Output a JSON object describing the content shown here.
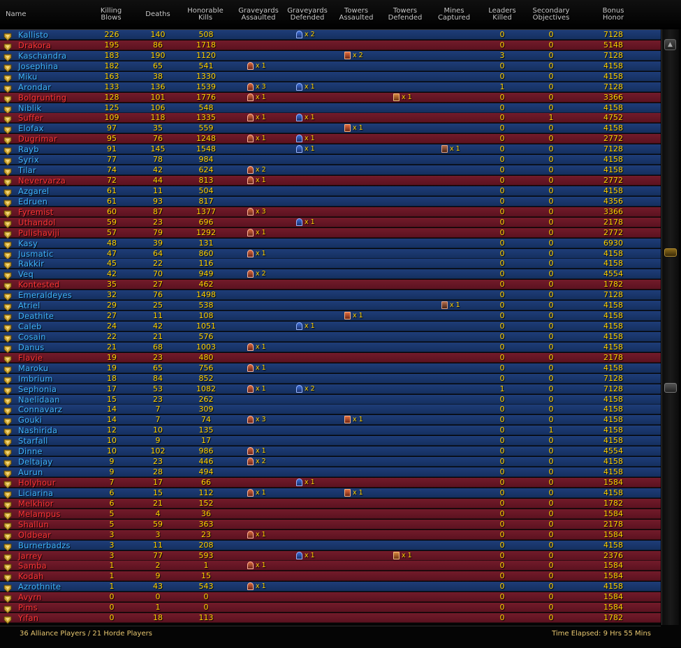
{
  "columns": [
    {
      "key": "name",
      "label": "Name"
    },
    {
      "key": "killing_blows",
      "label": "Killing\nBlows"
    },
    {
      "key": "deaths",
      "label": "Deaths"
    },
    {
      "key": "honorable_kills",
      "label": "Honorable\nKills"
    },
    {
      "key": "graveyards_assaulted",
      "label": "Graveyards\nAssaulted"
    },
    {
      "key": "graveyards_defended",
      "label": "Graveyards\nDefended"
    },
    {
      "key": "towers_assaulted",
      "label": "Towers\nAssaulted"
    },
    {
      "key": "towers_defended",
      "label": "Towers\nDefended"
    },
    {
      "key": "mines_captured",
      "label": "Mines\nCaptured"
    },
    {
      "key": "leaders_killed",
      "label": "Leaders\nKilled"
    },
    {
      "key": "secondary_objectives",
      "label": "Secondary\nObjectives"
    },
    {
      "key": "bonus_honor",
      "label": "Bonus\nHonor"
    }
  ],
  "colors": {
    "alliance": "#1e3d78",
    "horde": "#731b2a",
    "alliance_name": "#3fb5ff",
    "horde_name": "#ff3535",
    "value": "#ffd200"
  },
  "players": [
    {
      "name": "Kallisto",
      "faction": "alliance",
      "rank_icon": "rank-insignia-icon",
      "kb": "226",
      "deaths": "140",
      "hk": "508",
      "gy_a": "",
      "gy_d": "x 2",
      "tw_a": "",
      "tw_d": "",
      "mines": "",
      "leaders": "0",
      "secondary": "0",
      "bonus": "7128"
    },
    {
      "name": "Drakora",
      "faction": "horde",
      "rank_icon": "rank-insignia-icon",
      "kb": "195",
      "deaths": "86",
      "hk": "1718",
      "gy_a": "",
      "gy_d": "",
      "tw_a": "",
      "tw_d": "",
      "mines": "",
      "leaders": "0",
      "secondary": "0",
      "bonus": "5148"
    },
    {
      "name": "Kaschandra",
      "faction": "alliance",
      "rank_icon": "rank-insignia-icon",
      "kb": "183",
      "deaths": "190",
      "hk": "1120",
      "gy_a": "",
      "gy_d": "",
      "tw_a": "x 2",
      "tw_d": "",
      "mines": "",
      "leaders": "3",
      "secondary": "0",
      "bonus": "7128"
    },
    {
      "name": "Josephina",
      "faction": "alliance",
      "rank_icon": "rank-insignia-icon",
      "kb": "182",
      "deaths": "65",
      "hk": "541",
      "gy_a": "x 1",
      "gy_d": "",
      "tw_a": "",
      "tw_d": "",
      "mines": "",
      "leaders": "0",
      "secondary": "0",
      "bonus": "4158"
    },
    {
      "name": "Miku",
      "faction": "alliance",
      "rank_icon": "rank-insignia-icon",
      "kb": "163",
      "deaths": "38",
      "hk": "1330",
      "gy_a": "",
      "gy_d": "",
      "tw_a": "",
      "tw_d": "",
      "mines": "",
      "leaders": "0",
      "secondary": "0",
      "bonus": "4158"
    },
    {
      "name": "Arondar",
      "faction": "alliance",
      "rank_icon": "rank-insignia-icon",
      "kb": "133",
      "deaths": "136",
      "hk": "1539",
      "gy_a": "x 3",
      "gy_d": "x 1",
      "tw_a": "",
      "tw_d": "",
      "mines": "",
      "leaders": "1",
      "secondary": "0",
      "bonus": "7128"
    },
    {
      "name": "Bolgrunting",
      "faction": "horde",
      "rank_icon": "rank-insignia-icon",
      "kb": "128",
      "deaths": "101",
      "hk": "1776",
      "gy_a": "x 1",
      "gy_d": "",
      "tw_a": "",
      "tw_d": "x 1",
      "mines": "",
      "leaders": "0",
      "secondary": "0",
      "bonus": "3366"
    },
    {
      "name": "Niblik",
      "faction": "alliance",
      "rank_icon": "rank-insignia-icon",
      "kb": "125",
      "deaths": "106",
      "hk": "548",
      "gy_a": "",
      "gy_d": "",
      "tw_a": "",
      "tw_d": "",
      "mines": "",
      "leaders": "0",
      "secondary": "0",
      "bonus": "4158"
    },
    {
      "name": "Suffer",
      "faction": "horde",
      "rank_icon": "rank-insignia-icon",
      "kb": "109",
      "deaths": "118",
      "hk": "1335",
      "gy_a": "x 1",
      "gy_d": "x 1",
      "tw_a": "",
      "tw_d": "",
      "mines": "",
      "leaders": "0",
      "secondary": "1",
      "bonus": "4752"
    },
    {
      "name": "Elofax",
      "faction": "alliance",
      "rank_icon": "rank-insignia-icon",
      "kb": "97",
      "deaths": "35",
      "hk": "559",
      "gy_a": "",
      "gy_d": "",
      "tw_a": "x 1",
      "tw_d": "",
      "mines": "",
      "leaders": "0",
      "secondary": "0",
      "bonus": "4158"
    },
    {
      "name": "Dugrimar",
      "faction": "horde",
      "rank_icon": "rank-insignia-icon",
      "kb": "95",
      "deaths": "76",
      "hk": "1248",
      "gy_a": "x 1",
      "gy_d": "x 1",
      "tw_a": "",
      "tw_d": "",
      "mines": "",
      "leaders": "0",
      "secondary": "0",
      "bonus": "2772"
    },
    {
      "name": "Rayb",
      "faction": "alliance",
      "rank_icon": "rank-insignia-icon",
      "kb": "91",
      "deaths": "145",
      "hk": "1548",
      "gy_a": "",
      "gy_d": "x 1",
      "tw_a": "",
      "tw_d": "",
      "mines": "x 1",
      "leaders": "0",
      "secondary": "0",
      "bonus": "7128"
    },
    {
      "name": "Syrix",
      "faction": "alliance",
      "rank_icon": "rank-insignia-icon",
      "kb": "77",
      "deaths": "78",
      "hk": "984",
      "gy_a": "",
      "gy_d": "",
      "tw_a": "",
      "tw_d": "",
      "mines": "",
      "leaders": "0",
      "secondary": "0",
      "bonus": "4158"
    },
    {
      "name": "Tilar",
      "faction": "alliance",
      "rank_icon": "rank-insignia-icon",
      "kb": "74",
      "deaths": "42",
      "hk": "624",
      "gy_a": "x 2",
      "gy_d": "",
      "tw_a": "",
      "tw_d": "",
      "mines": "",
      "leaders": "0",
      "secondary": "0",
      "bonus": "4158"
    },
    {
      "name": "Nevervarza",
      "faction": "horde",
      "rank_icon": "rank-insignia-icon",
      "kb": "72",
      "deaths": "44",
      "hk": "813",
      "gy_a": "x 1",
      "gy_d": "",
      "tw_a": "",
      "tw_d": "",
      "mines": "",
      "leaders": "0",
      "secondary": "0",
      "bonus": "2772"
    },
    {
      "name": "Azgarel",
      "faction": "alliance",
      "rank_icon": "rank-insignia-icon",
      "kb": "61",
      "deaths": "11",
      "hk": "504",
      "gy_a": "",
      "gy_d": "",
      "tw_a": "",
      "tw_d": "",
      "mines": "",
      "leaders": "0",
      "secondary": "0",
      "bonus": "4158"
    },
    {
      "name": "Edruen",
      "faction": "alliance",
      "rank_icon": "rank-insignia-icon",
      "kb": "61",
      "deaths": "93",
      "hk": "817",
      "gy_a": "",
      "gy_d": "",
      "tw_a": "",
      "tw_d": "",
      "mines": "",
      "leaders": "0",
      "secondary": "0",
      "bonus": "4356"
    },
    {
      "name": "Fyremist",
      "faction": "horde",
      "rank_icon": "rank-insignia-icon",
      "kb": "60",
      "deaths": "87",
      "hk": "1377",
      "gy_a": "x 3",
      "gy_d": "",
      "tw_a": "",
      "tw_d": "",
      "mines": "",
      "leaders": "0",
      "secondary": "0",
      "bonus": "3366"
    },
    {
      "name": "Uthandol",
      "faction": "horde",
      "rank_icon": "rank-insignia-icon",
      "kb": "59",
      "deaths": "23",
      "hk": "696",
      "gy_a": "",
      "gy_d": "x 1",
      "tw_a": "",
      "tw_d": "",
      "mines": "",
      "leaders": "0",
      "secondary": "0",
      "bonus": "2178"
    },
    {
      "name": "Pulishaviji",
      "faction": "horde",
      "rank_icon": "rank-insignia-icon",
      "kb": "57",
      "deaths": "79",
      "hk": "1292",
      "gy_a": "x 1",
      "gy_d": "",
      "tw_a": "",
      "tw_d": "",
      "mines": "",
      "leaders": "0",
      "secondary": "0",
      "bonus": "2772"
    },
    {
      "name": "Kasy",
      "faction": "alliance",
      "rank_icon": "rank-insignia-icon",
      "kb": "48",
      "deaths": "39",
      "hk": "131",
      "gy_a": "",
      "gy_d": "",
      "tw_a": "",
      "tw_d": "",
      "mines": "",
      "leaders": "0",
      "secondary": "0",
      "bonus": "6930"
    },
    {
      "name": "Jusmatic",
      "faction": "alliance",
      "rank_icon": "rank-insignia-icon",
      "kb": "47",
      "deaths": "64",
      "hk": "860",
      "gy_a": "x 1",
      "gy_d": "",
      "tw_a": "",
      "tw_d": "",
      "mines": "",
      "leaders": "0",
      "secondary": "0",
      "bonus": "4158"
    },
    {
      "name": "Rakkir",
      "faction": "alliance",
      "rank_icon": "rank-insignia-icon",
      "kb": "45",
      "deaths": "22",
      "hk": "116",
      "gy_a": "",
      "gy_d": "",
      "tw_a": "",
      "tw_d": "",
      "mines": "",
      "leaders": "0",
      "secondary": "0",
      "bonus": "4158"
    },
    {
      "name": "Veq",
      "faction": "alliance",
      "rank_icon": "rank-insignia-icon",
      "kb": "42",
      "deaths": "70",
      "hk": "949",
      "gy_a": "x 2",
      "gy_d": "",
      "tw_a": "",
      "tw_d": "",
      "mines": "",
      "leaders": "0",
      "secondary": "0",
      "bonus": "4554"
    },
    {
      "name": "Kontested",
      "faction": "horde",
      "rank_icon": "rank-insignia-icon",
      "kb": "35",
      "deaths": "27",
      "hk": "462",
      "gy_a": "",
      "gy_d": "",
      "tw_a": "",
      "tw_d": "",
      "mines": "",
      "leaders": "0",
      "secondary": "0",
      "bonus": "1782"
    },
    {
      "name": "Emeraldeyes",
      "faction": "alliance",
      "rank_icon": "rank-insignia-icon",
      "kb": "32",
      "deaths": "76",
      "hk": "1498",
      "gy_a": "",
      "gy_d": "",
      "tw_a": "",
      "tw_d": "",
      "mines": "",
      "leaders": "0",
      "secondary": "0",
      "bonus": "7128"
    },
    {
      "name": "Atriel",
      "faction": "alliance",
      "rank_icon": "rank-insignia-icon",
      "kb": "29",
      "deaths": "25",
      "hk": "538",
      "gy_a": "",
      "gy_d": "",
      "tw_a": "",
      "tw_d": "",
      "mines": "x 1",
      "leaders": "0",
      "secondary": "0",
      "bonus": "4158"
    },
    {
      "name": "Deathite",
      "faction": "alliance",
      "rank_icon": "rank-insignia-icon",
      "kb": "27",
      "deaths": "11",
      "hk": "108",
      "gy_a": "",
      "gy_d": "",
      "tw_a": "x 1",
      "tw_d": "",
      "mines": "",
      "leaders": "0",
      "secondary": "0",
      "bonus": "4158"
    },
    {
      "name": "Caleb",
      "faction": "alliance",
      "rank_icon": "rank-insignia-icon",
      "kb": "24",
      "deaths": "42",
      "hk": "1051",
      "gy_a": "",
      "gy_d": "x 1",
      "tw_a": "",
      "tw_d": "",
      "mines": "",
      "leaders": "0",
      "secondary": "0",
      "bonus": "4158"
    },
    {
      "name": "Cosain",
      "faction": "alliance",
      "rank_icon": "rank-insignia-icon",
      "kb": "22",
      "deaths": "21",
      "hk": "576",
      "gy_a": "",
      "gy_d": "",
      "tw_a": "",
      "tw_d": "",
      "mines": "",
      "leaders": "0",
      "secondary": "0",
      "bonus": "4158"
    },
    {
      "name": "Danus",
      "faction": "alliance",
      "rank_icon": "rank-insignia-icon",
      "kb": "21",
      "deaths": "68",
      "hk": "1003",
      "gy_a": "x 1",
      "gy_d": "",
      "tw_a": "",
      "tw_d": "",
      "mines": "",
      "leaders": "0",
      "secondary": "0",
      "bonus": "4158"
    },
    {
      "name": "Flavie",
      "faction": "horde",
      "rank_icon": "rank-insignia-icon",
      "kb": "19",
      "deaths": "23",
      "hk": "480",
      "gy_a": "",
      "gy_d": "",
      "tw_a": "",
      "tw_d": "",
      "mines": "",
      "leaders": "0",
      "secondary": "0",
      "bonus": "2178"
    },
    {
      "name": "Maroku",
      "faction": "alliance",
      "rank_icon": "rank-insignia-icon",
      "kb": "19",
      "deaths": "65",
      "hk": "756",
      "gy_a": "x 1",
      "gy_d": "",
      "tw_a": "",
      "tw_d": "",
      "mines": "",
      "leaders": "0",
      "secondary": "0",
      "bonus": "4158"
    },
    {
      "name": "Imbrium",
      "faction": "alliance",
      "rank_icon": "rank-insignia-icon",
      "kb": "18",
      "deaths": "84",
      "hk": "852",
      "gy_a": "",
      "gy_d": "",
      "tw_a": "",
      "tw_d": "",
      "mines": "",
      "leaders": "0",
      "secondary": "0",
      "bonus": "7128"
    },
    {
      "name": "Sephonia",
      "faction": "alliance",
      "rank_icon": "rank-insignia-icon",
      "kb": "17",
      "deaths": "53",
      "hk": "1082",
      "gy_a": "x 1",
      "gy_d": "x 2",
      "tw_a": "",
      "tw_d": "",
      "mines": "",
      "leaders": "1",
      "secondary": "0",
      "bonus": "7128"
    },
    {
      "name": "Naelidaan",
      "faction": "alliance",
      "rank_icon": "rank-insignia-icon",
      "kb": "15",
      "deaths": "23",
      "hk": "262",
      "gy_a": "",
      "gy_d": "",
      "tw_a": "",
      "tw_d": "",
      "mines": "",
      "leaders": "0",
      "secondary": "0",
      "bonus": "4158"
    },
    {
      "name": "Connavarz",
      "faction": "alliance",
      "rank_icon": "rank-insignia-icon",
      "kb": "14",
      "deaths": "7",
      "hk": "309",
      "gy_a": "",
      "gy_d": "",
      "tw_a": "",
      "tw_d": "",
      "mines": "",
      "leaders": "0",
      "secondary": "0",
      "bonus": "4158"
    },
    {
      "name": "Gouki",
      "faction": "alliance",
      "rank_icon": "rank-insignia-icon",
      "kb": "14",
      "deaths": "7",
      "hk": "74",
      "gy_a": "x 3",
      "gy_d": "",
      "tw_a": "x 1",
      "tw_d": "",
      "mines": "",
      "leaders": "0",
      "secondary": "0",
      "bonus": "4158"
    },
    {
      "name": "Nashirida",
      "faction": "alliance",
      "rank_icon": "rank-insignia-icon",
      "kb": "12",
      "deaths": "10",
      "hk": "135",
      "gy_a": "",
      "gy_d": "",
      "tw_a": "",
      "tw_d": "",
      "mines": "",
      "leaders": "0",
      "secondary": "1",
      "bonus": "4158"
    },
    {
      "name": "Starfall",
      "faction": "alliance",
      "rank_icon": "rank-insignia-icon",
      "kb": "10",
      "deaths": "9",
      "hk": "17",
      "gy_a": "",
      "gy_d": "",
      "tw_a": "",
      "tw_d": "",
      "mines": "",
      "leaders": "0",
      "secondary": "0",
      "bonus": "4158"
    },
    {
      "name": "Dinne",
      "faction": "alliance",
      "rank_icon": "rank-insignia-icon",
      "kb": "10",
      "deaths": "102",
      "hk": "986",
      "gy_a": "x 1",
      "gy_d": "",
      "tw_a": "",
      "tw_d": "",
      "mines": "",
      "leaders": "0",
      "secondary": "0",
      "bonus": "4554"
    },
    {
      "name": "Deltajay",
      "faction": "alliance",
      "rank_icon": "rank-insignia-icon",
      "kb": "9",
      "deaths": "23",
      "hk": "446",
      "gy_a": "x 2",
      "gy_d": "",
      "tw_a": "",
      "tw_d": "",
      "mines": "",
      "leaders": "0",
      "secondary": "0",
      "bonus": "4158"
    },
    {
      "name": "Aurun",
      "faction": "alliance",
      "rank_icon": "rank-insignia-icon",
      "kb": "9",
      "deaths": "28",
      "hk": "494",
      "gy_a": "",
      "gy_d": "",
      "tw_a": "",
      "tw_d": "",
      "mines": "",
      "leaders": "0",
      "secondary": "0",
      "bonus": "4158"
    },
    {
      "name": "Holyhour",
      "faction": "horde",
      "rank_icon": "rank-insignia-icon",
      "kb": "7",
      "deaths": "17",
      "hk": "66",
      "gy_a": "",
      "gy_d": "x 1",
      "tw_a": "",
      "tw_d": "",
      "mines": "",
      "leaders": "0",
      "secondary": "0",
      "bonus": "1584"
    },
    {
      "name": "Liciarina",
      "faction": "alliance",
      "rank_icon": "rank-insignia-icon",
      "kb": "6",
      "deaths": "15",
      "hk": "112",
      "gy_a": "x 1",
      "gy_d": "",
      "tw_a": "x 1",
      "tw_d": "",
      "mines": "",
      "leaders": "0",
      "secondary": "0",
      "bonus": "4158"
    },
    {
      "name": "Melkhior",
      "faction": "horde",
      "rank_icon": "rank-insignia-icon",
      "kb": "6",
      "deaths": "21",
      "hk": "152",
      "gy_a": "",
      "gy_d": "",
      "tw_a": "",
      "tw_d": "",
      "mines": "",
      "leaders": "0",
      "secondary": "0",
      "bonus": "1782"
    },
    {
      "name": "Melampus",
      "faction": "horde",
      "rank_icon": "rank-insignia-icon",
      "kb": "5",
      "deaths": "4",
      "hk": "36",
      "gy_a": "",
      "gy_d": "",
      "tw_a": "",
      "tw_d": "",
      "mines": "",
      "leaders": "0",
      "secondary": "0",
      "bonus": "1584"
    },
    {
      "name": "Shallun",
      "faction": "horde",
      "rank_icon": "rank-insignia-icon",
      "kb": "5",
      "deaths": "59",
      "hk": "363",
      "gy_a": "",
      "gy_d": "",
      "tw_a": "",
      "tw_d": "",
      "mines": "",
      "leaders": "0",
      "secondary": "0",
      "bonus": "2178"
    },
    {
      "name": "Oldbear",
      "faction": "horde",
      "rank_icon": "rank-insignia-icon",
      "kb": "3",
      "deaths": "3",
      "hk": "23",
      "gy_a": "x 1",
      "gy_d": "",
      "tw_a": "",
      "tw_d": "",
      "mines": "",
      "leaders": "0",
      "secondary": "0",
      "bonus": "1584"
    },
    {
      "name": "Burnerbadzs",
      "faction": "alliance",
      "rank_icon": "rank-insignia-icon",
      "kb": "3",
      "deaths": "11",
      "hk": "208",
      "gy_a": "",
      "gy_d": "",
      "tw_a": "",
      "tw_d": "",
      "mines": "",
      "leaders": "0",
      "secondary": "0",
      "bonus": "4158"
    },
    {
      "name": "Jarrey",
      "faction": "horde",
      "rank_icon": "rank-insignia-icon",
      "kb": "3",
      "deaths": "77",
      "hk": "593",
      "gy_a": "",
      "gy_d": "x 1",
      "tw_a": "",
      "tw_d": "x 1",
      "mines": "",
      "leaders": "0",
      "secondary": "0",
      "bonus": "2376"
    },
    {
      "name": "Samba",
      "faction": "horde",
      "rank_icon": "rank-insignia-icon",
      "kb": "1",
      "deaths": "2",
      "hk": "1",
      "gy_a": "x 1",
      "gy_d": "",
      "tw_a": "",
      "tw_d": "",
      "mines": "",
      "leaders": "0",
      "secondary": "0",
      "bonus": "1584"
    },
    {
      "name": "Kodah",
      "faction": "horde",
      "rank_icon": "rank-insignia-icon",
      "kb": "1",
      "deaths": "9",
      "hk": "15",
      "gy_a": "",
      "gy_d": "",
      "tw_a": "",
      "tw_d": "",
      "mines": "",
      "leaders": "0",
      "secondary": "0",
      "bonus": "1584"
    },
    {
      "name": "Azrothnite",
      "faction": "alliance",
      "rank_icon": "rank-insignia-icon",
      "kb": "1",
      "deaths": "43",
      "hk": "543",
      "gy_a": "x 1",
      "gy_d": "",
      "tw_a": "",
      "tw_d": "",
      "mines": "",
      "leaders": "0",
      "secondary": "0",
      "bonus": "4158"
    },
    {
      "name": "Avyrn",
      "faction": "horde",
      "rank_icon": "rank-insignia-icon",
      "kb": "0",
      "deaths": "0",
      "hk": "0",
      "gy_a": "",
      "gy_d": "",
      "tw_a": "",
      "tw_d": "",
      "mines": "",
      "leaders": "0",
      "secondary": "0",
      "bonus": "1584"
    },
    {
      "name": "Pims",
      "faction": "horde",
      "rank_icon": "rank-insignia-icon",
      "kb": "0",
      "deaths": "1",
      "hk": "0",
      "gy_a": "",
      "gy_d": "",
      "tw_a": "",
      "tw_d": "",
      "mines": "",
      "leaders": "0",
      "secondary": "0",
      "bonus": "1584"
    },
    {
      "name": "Yifan",
      "faction": "horde",
      "rank_icon": "rank-insignia-icon",
      "kb": "0",
      "deaths": "18",
      "hk": "113",
      "gy_a": "",
      "gy_d": "",
      "tw_a": "",
      "tw_d": "",
      "mines": "",
      "leaders": "0",
      "secondary": "0",
      "bonus": "1782"
    }
  ],
  "footer": {
    "player_counts": "36 Alliance Players / 21 Horde Players",
    "time_elapsed": "Time Elapsed: 9 Hrs 55 Mins"
  },
  "scrollbar": {
    "up_icon": "scroll-up-icon",
    "down_icon": "scroll-down-icon"
  }
}
